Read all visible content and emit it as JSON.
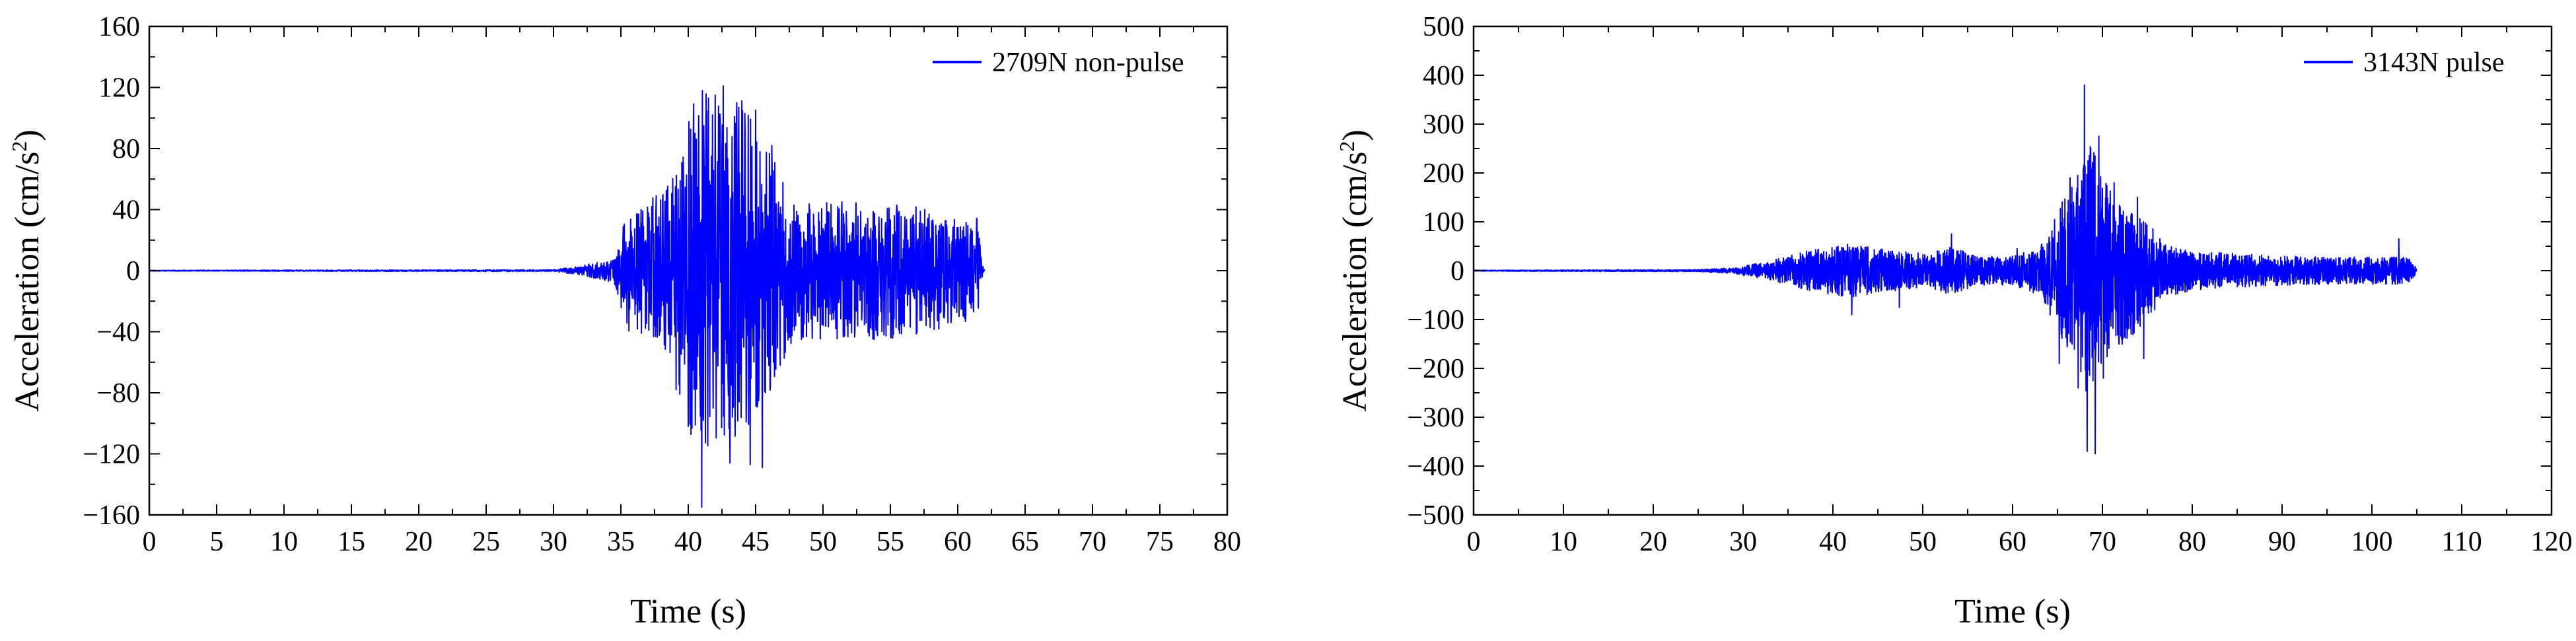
{
  "chart_data": [
    {
      "type": "line",
      "xlabel": "Time (s)",
      "ylabel_text": "Acceleration (cm/s",
      "ylabel_sup": "2",
      "ylabel_close": ")",
      "xlim": [
        0,
        80
      ],
      "ylim": [
        -160,
        160
      ],
      "xticks": [
        0,
        5,
        10,
        15,
        20,
        25,
        30,
        35,
        40,
        45,
        50,
        55,
        60,
        65,
        70,
        75,
        80
      ],
      "yticks": [
        -160,
        -120,
        -80,
        -40,
        0,
        40,
        80,
        120,
        160
      ],
      "grid": false,
      "legend_position": "top-right",
      "line_color": "#0000ff",
      "series": [
        {
          "name": "2709N non-pulse",
          "duration": 62,
          "envelope": [
            [
              0,
              0.3
            ],
            [
              30,
              0.6
            ],
            [
              32,
              3
            ],
            [
              34.5,
              8
            ],
            [
              35.5,
              40
            ],
            [
              37,
              45
            ],
            [
              39,
              65
            ],
            [
              40,
              110
            ],
            [
              41,
              120
            ],
            [
              42,
              112
            ],
            [
              43,
              110
            ],
            [
              44,
              115
            ],
            [
              45,
              95
            ],
            [
              46,
              80
            ],
            [
              47,
              60
            ],
            [
              48,
              45
            ],
            [
              50,
              45
            ],
            [
              52,
              45
            ],
            [
              55,
              45
            ],
            [
              58,
              40
            ],
            [
              60,
              35
            ],
            [
              61.5,
              35
            ],
            [
              61.8,
              5
            ],
            [
              62,
              0
            ]
          ],
          "peaks": [
            [
              40.0,
              -102
            ],
            [
              40.5,
              90
            ],
            [
              41.0,
              -155
            ],
            [
              41.5,
              113
            ],
            [
              42.0,
              115
            ],
            [
              42.6,
              121
            ],
            [
              43.1,
              -126
            ],
            [
              43.6,
              110
            ],
            [
              44.2,
              103
            ],
            [
              44.6,
              -127
            ],
            [
              45.0,
              105
            ],
            [
              45.5,
              -129
            ],
            [
              46.2,
              82
            ],
            [
              39.1,
              -78
            ],
            [
              36.5,
              40
            ],
            [
              37.3,
              42
            ],
            [
              48.4,
              -45
            ],
            [
              51.4,
              45
            ],
            [
              53.8,
              -45
            ],
            [
              55.5,
              39
            ]
          ]
        }
      ]
    },
    {
      "type": "line",
      "xlabel": "Time (s)",
      "ylabel_text": "Acceleration (cm/s",
      "ylabel_sup": "2",
      "ylabel_close": ")",
      "xlim": [
        0,
        120
      ],
      "ylim": [
        -500,
        500
      ],
      "xticks": [
        0,
        10,
        20,
        30,
        40,
        50,
        60,
        70,
        80,
        90,
        100,
        110,
        120
      ],
      "yticks": [
        -500,
        -400,
        -300,
        -200,
        -100,
        0,
        100,
        200,
        300,
        400,
        500
      ],
      "grid": false,
      "legend_position": "top-right",
      "line_color": "#0000ff",
      "series": [
        {
          "name": "3143N pulse",
          "duration": 105,
          "envelope": [
            [
              0,
              1
            ],
            [
              25,
              2
            ],
            [
              29,
              6
            ],
            [
              33,
              20
            ],
            [
              37,
              40
            ],
            [
              42,
              55
            ],
            [
              45,
              45
            ],
            [
              50,
              35
            ],
            [
              53,
              50
            ],
            [
              56,
              30
            ],
            [
              60,
              30
            ],
            [
              63,
              50
            ],
            [
              65,
              120
            ],
            [
              66,
              160
            ],
            [
              67,
              180
            ],
            [
              68,
              250
            ],
            [
              69,
              270
            ],
            [
              70,
              200
            ],
            [
              71,
              160
            ],
            [
              73,
              140
            ],
            [
              75,
              100
            ],
            [
              77,
              55
            ],
            [
              80,
              40
            ],
            [
              85,
              35
            ],
            [
              90,
              30
            ],
            [
              95,
              28
            ],
            [
              100,
              28
            ],
            [
              104,
              30
            ],
            [
              104.8,
              10
            ],
            [
              105,
              0
            ]
          ],
          "peaks": [
            [
              68.0,
              380
            ],
            [
              68.3,
              -370
            ],
            [
              68.7,
              250
            ],
            [
              69.2,
              -375
            ],
            [
              69.6,
              275
            ],
            [
              70.1,
              -220
            ],
            [
              67.3,
              -240
            ],
            [
              66.4,
              190
            ],
            [
              71.3,
              180
            ],
            [
              72.2,
              -150
            ],
            [
              73.9,
              150
            ],
            [
              74.6,
              -180
            ],
            [
              65.2,
              -190
            ],
            [
              53.2,
              75
            ],
            [
              42.1,
              -90
            ],
            [
              103.0,
              65
            ],
            [
              47.4,
              -75
            ],
            [
              60.5,
              45
            ]
          ]
        }
      ]
    }
  ]
}
